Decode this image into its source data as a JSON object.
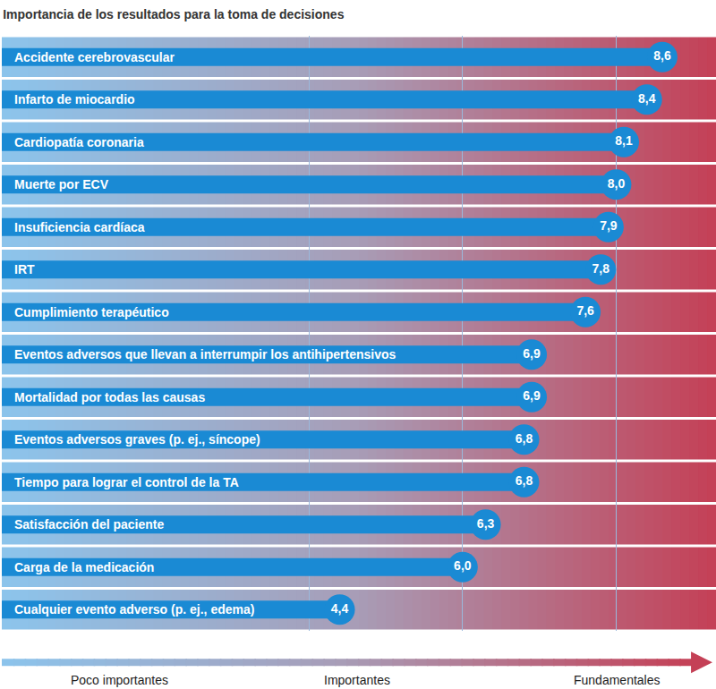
{
  "chart_data": {
    "type": "bar",
    "title": "Importancia de los resultados para la toma de decisiones",
    "orientation": "horizontal",
    "categories": [
      "Accidente cerebrovascular",
      "Infarto de miocardio",
      "Cardiopatía coronaria",
      "Muerte por ECV",
      "Insuficiencia cardíaca",
      "IRT",
      "Cumplimiento terapéutico",
      "Eventos adversos que llevan a interrumpir los antihipertensivos",
      "Mortalidad por todas las causas",
      "Eventos adversos graves (p. ej., síncope)",
      "Tiempo para lograr el control de la TA",
      "Satisfacción del paciente",
      "Carga de la medicación",
      "Cualquier evento adverso (p. ej., edema)"
    ],
    "values": [
      8.6,
      8.4,
      8.1,
      8.0,
      7.9,
      7.8,
      7.6,
      6.9,
      6.9,
      6.8,
      6.8,
      6.3,
      6.0,
      4.4
    ],
    "value_labels": [
      "8,6",
      "8,4",
      "8,1",
      "8,0",
      "7,9",
      "7,8",
      "7,6",
      "6,9",
      "6,9",
      "6,8",
      "6,8",
      "6,3",
      "6,0",
      "4,4"
    ],
    "color": "#1a8ad4",
    "xlim": [
      0,
      9.3
    ],
    "xticks": [
      4,
      6,
      8
    ],
    "grid": true,
    "data_labels": true,
    "tick_labels": false,
    "annotations": [
      "Poco importantes",
      "Importantes",
      "Fundamentales"
    ]
  }
}
